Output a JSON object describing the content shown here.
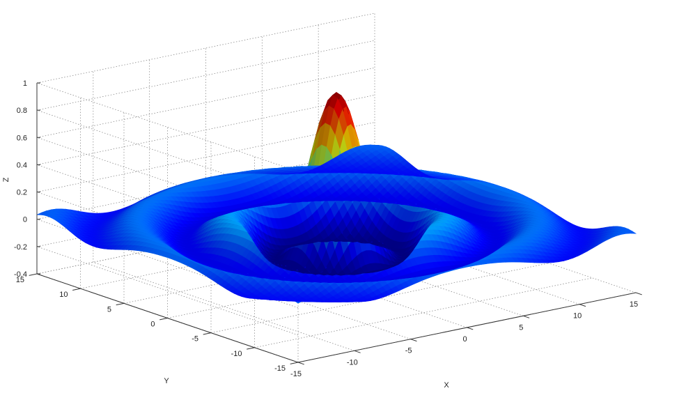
{
  "chart_data": {
    "type": "surface",
    "function": "sin(r)/r, r = sqrt(x^2 + y^2)",
    "title": "",
    "xlabel": "X",
    "ylabel": "Y",
    "zlabel": "Z",
    "xlim": [
      -15,
      15
    ],
    "ylim": [
      -15,
      15
    ],
    "zlim": [
      -0.4,
      1
    ],
    "x_ticks": [
      -15,
      -10,
      -5,
      0,
      5,
      10,
      15
    ],
    "y_ticks": [
      -15,
      -10,
      -5,
      0,
      5,
      10,
      15
    ],
    "z_ticks": [
      -0.4,
      -0.2,
      0,
      0.2,
      0.4,
      0.6,
      0.8,
      1
    ],
    "x_tick_labels": [
      "-15",
      "-10",
      "-5",
      "0",
      "5",
      "10",
      "15"
    ],
    "y_tick_labels": [
      "-15",
      "-10",
      "-5",
      "0",
      "5",
      "10",
      "15"
    ],
    "z_tick_labels": [
      "-0.4",
      "-0.2",
      "0",
      "0.2",
      "0.4",
      "0.6",
      "0.8",
      "1"
    ],
    "peak": {
      "x": 0,
      "y": 0,
      "z": 0.9
    },
    "grid": true,
    "box": true,
    "colormap": "jet"
  }
}
